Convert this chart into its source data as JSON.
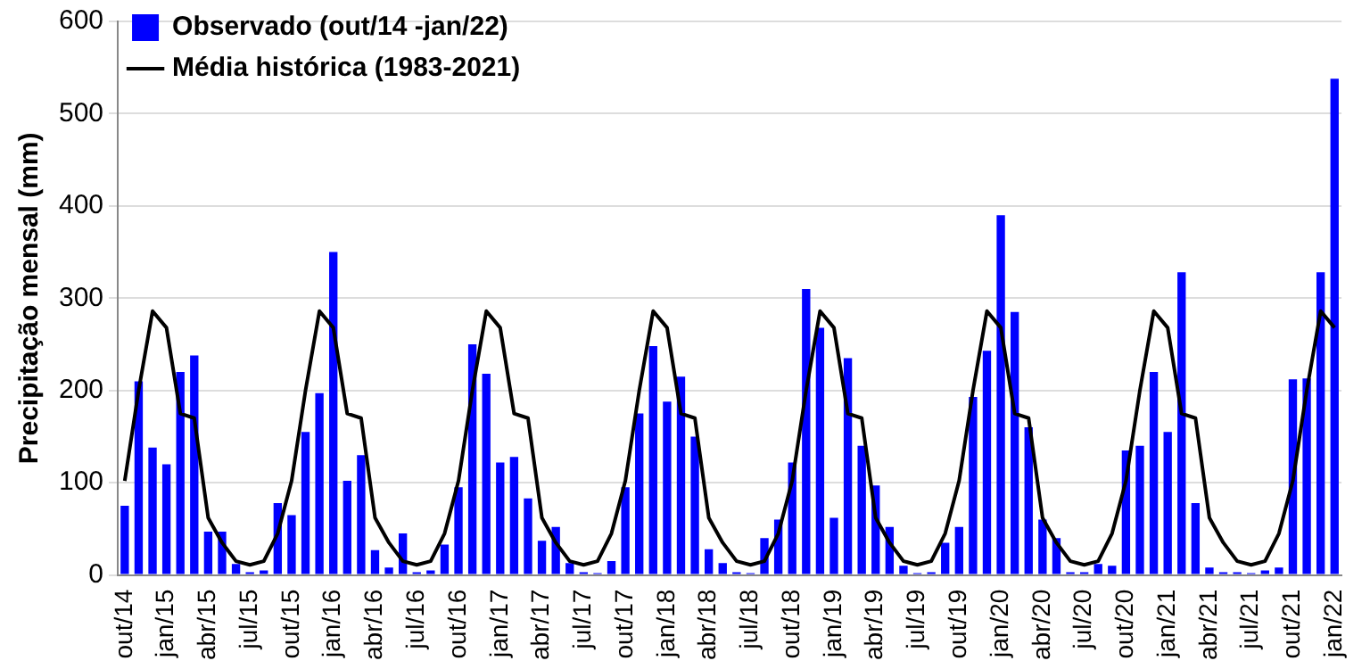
{
  "chart_data": {
    "type": "bar",
    "ylabel": "Precipitação mensal (mm)",
    "categories": [
      "out/14",
      null,
      null,
      "jan/15",
      null,
      null,
      "abr/15",
      null,
      null,
      "jul/15",
      null,
      null,
      "out/15",
      null,
      null,
      "jan/16",
      null,
      null,
      "abr/16",
      null,
      null,
      "jul/16",
      null,
      null,
      "out/16",
      null,
      null,
      "jan/17",
      null,
      null,
      "abr/17",
      null,
      null,
      "jul/17",
      null,
      null,
      "out/17",
      null,
      null,
      "jan/18",
      null,
      null,
      "abr/18",
      null,
      null,
      "jul/18",
      null,
      null,
      "out/18",
      null,
      null,
      "jan/19",
      null,
      null,
      "abr/19",
      null,
      null,
      "jul/19",
      null,
      null,
      "out/19",
      null,
      null,
      "jan/20",
      null,
      null,
      "abr/20",
      null,
      null,
      "jul/20",
      null,
      null,
      "out/20",
      null,
      null,
      "jan/21",
      null,
      null,
      "abr/21",
      null,
      null,
      "jul/21",
      null,
      null,
      "out/21",
      null,
      null,
      "jan/22"
    ],
    "series": [
      {
        "name": "Observado (out/14 -jan/22)",
        "color": "#0000ff",
        "values": [
          75,
          210,
          138,
          120,
          220,
          238,
          47,
          47,
          12,
          3,
          5,
          78,
          65,
          155,
          197,
          350,
          102,
          130,
          27,
          8,
          45,
          3,
          5,
          33,
          95,
          250,
          218,
          122,
          128,
          83,
          37,
          52,
          13,
          3,
          2,
          15,
          95,
          175,
          248,
          188,
          215,
          150,
          28,
          13,
          3,
          2,
          40,
          60,
          122,
          310,
          268,
          62,
          235,
          140,
          97,
          52,
          10,
          2,
          3,
          35,
          52,
          193,
          243,
          390,
          285,
          160,
          60,
          40,
          3,
          3,
          12,
          10,
          135,
          140,
          220,
          155,
          328,
          78,
          8,
          3,
          3,
          2,
          5,
          8,
          212,
          213,
          328,
          538
        ]
      },
      {
        "name": "Média histórica (1983-2021)",
        "type": "line",
        "color": "#000000",
        "values": [
          102,
          200,
          286,
          268,
          175,
          170,
          62,
          35,
          15,
          11,
          15,
          45,
          102,
          200,
          286,
          268,
          175,
          170,
          62,
          35,
          15,
          11,
          15,
          45,
          102,
          200,
          286,
          268,
          175,
          170,
          62,
          35,
          15,
          11,
          15,
          45,
          102,
          200,
          286,
          268,
          175,
          170,
          62,
          35,
          15,
          11,
          15,
          45,
          102,
          200,
          286,
          268,
          175,
          170,
          62,
          35,
          15,
          11,
          15,
          45,
          102,
          200,
          286,
          268,
          175,
          170,
          62,
          35,
          15,
          11,
          15,
          45,
          102,
          200,
          286,
          268,
          175,
          170,
          62,
          35,
          15,
          11,
          15,
          45,
          102,
          200,
          286,
          268
        ]
      }
    ],
    "ylim": [
      0,
      600
    ],
    "yticks": [
      0,
      100,
      200,
      300,
      400,
      500,
      600
    ],
    "grid": "y",
    "legend": "top left",
    "marker": "none",
    "line_style": "solid"
  }
}
